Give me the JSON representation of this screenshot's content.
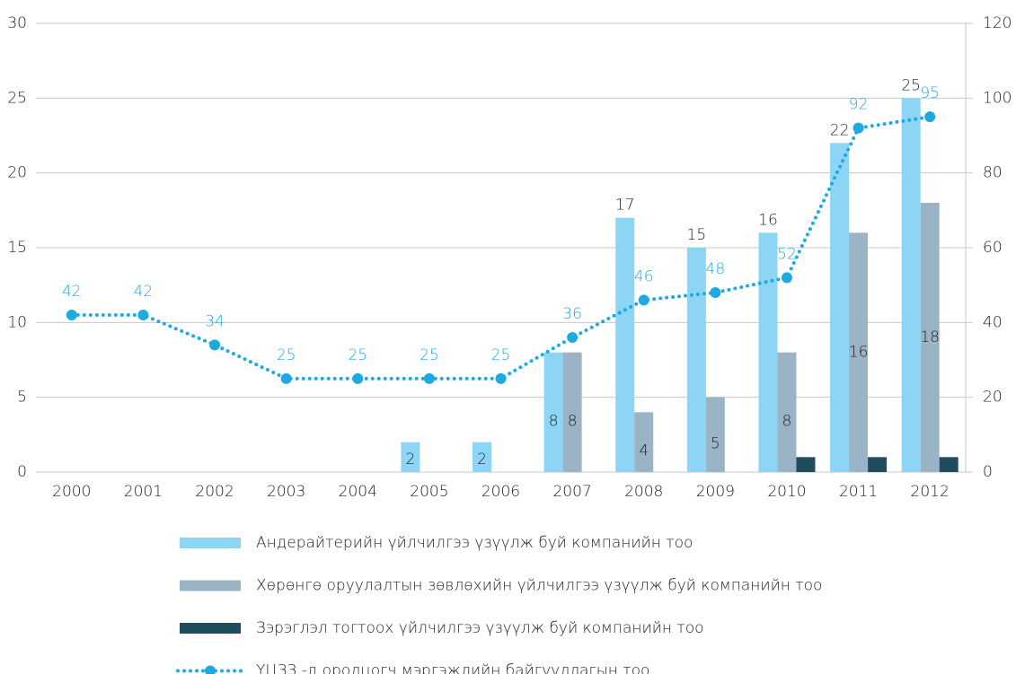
{
  "chart_data": {
    "type": "bar_line",
    "categories": [
      "2000",
      "2001",
      "2002",
      "2003",
      "2004",
      "2005",
      "2006",
      "2007",
      "2008",
      "2009",
      "2010",
      "2011",
      "2012"
    ],
    "series": [
      {
        "name": "Андерайтерийн үйлчилгээ үзүүлж буй компанийн тоо",
        "color": "#8dd5f4",
        "type": "bar",
        "data_labels": true,
        "values": [
          null,
          null,
          null,
          null,
          null,
          2,
          2,
          8,
          17,
          15,
          16,
          22,
          25
        ]
      },
      {
        "name": "Хөрөнгө оруулалтын зөвлөхийн үйлчилгээ үзүүлж буй компанийн тоо",
        "color": "#9bb4c5",
        "type": "bar",
        "data_labels": true,
        "values": [
          null,
          null,
          null,
          null,
          null,
          null,
          null,
          8,
          4,
          5,
          8,
          16,
          18
        ]
      },
      {
        "name": "Зэрэглэл тогтоох үйлчилгээ үзүүлж буй компанийн тоо",
        "color": "#1f4d5e",
        "type": "bar",
        "data_labels": false,
        "values": [
          null,
          null,
          null,
          null,
          null,
          null,
          null,
          null,
          null,
          null,
          1,
          1,
          1
        ]
      },
      {
        "name": "ҮЦЗЗ  -д оролцогч мэргэжлийн байгууллагын тоо",
        "color": "#1fa9e1",
        "type": "line",
        "axis": "y2",
        "data_labels": true,
        "values": [
          42,
          42,
          34,
          25,
          25,
          25,
          25,
          36,
          46,
          48,
          52,
          92,
          95
        ]
      }
    ],
    "ylim": [
      0,
      30
    ],
    "yticks": [
      0,
      5,
      10,
      15,
      20,
      25,
      30
    ],
    "y2lim": [
      0,
      120
    ],
    "y2ticks": [
      0,
      20,
      40,
      60,
      80,
      100,
      120
    ],
    "grid": true
  }
}
